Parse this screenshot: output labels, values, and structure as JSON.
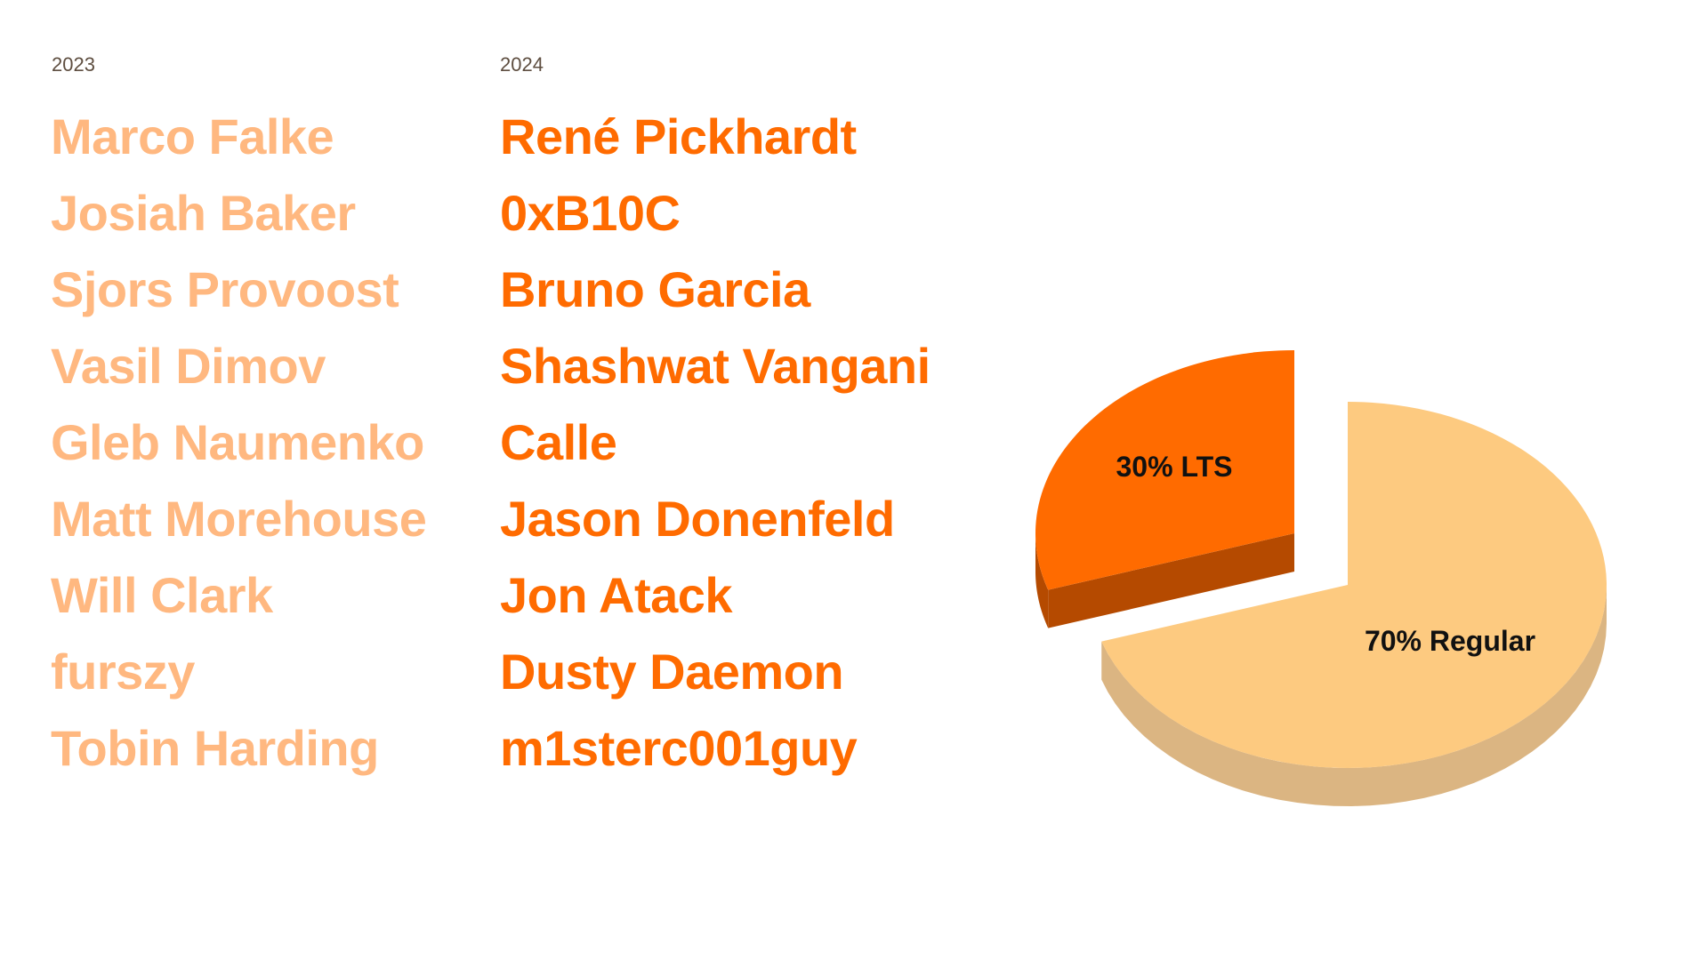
{
  "columns": [
    {
      "year": "2023",
      "names": [
        "Marco Falke",
        "Josiah Baker",
        "Sjors Provoost",
        "Vasil Dimov",
        "Gleb Naumenko",
        "Matt Morehouse",
        "Will Clark",
        "furszy",
        "Tobin Harding"
      ]
    },
    {
      "year": "2024",
      "names": [
        "René Pickhardt",
        "0xB10C",
        "Bruno Garcia",
        "Shashwat Vangani",
        "Calle",
        "Jason Donenfeld",
        "Jon Atack",
        "Dusty Daemon",
        "m1sterc001guy"
      ]
    }
  ],
  "colors": {
    "names_2023": "#ffb880",
    "names_2024": "#ff6b00",
    "year_label": "#5e4e40"
  },
  "chart_data": {
    "type": "pie",
    "style": "3d-exploded",
    "slices": [
      {
        "label": "70% Regular",
        "value": 70,
        "color": "#fdca80",
        "side_color": "#dbb582",
        "exploded": false
      },
      {
        "label": "30% LTS",
        "value": 30,
        "color": "#ff6b00",
        "side_color": "#b54a00",
        "exploded": true
      }
    ]
  }
}
